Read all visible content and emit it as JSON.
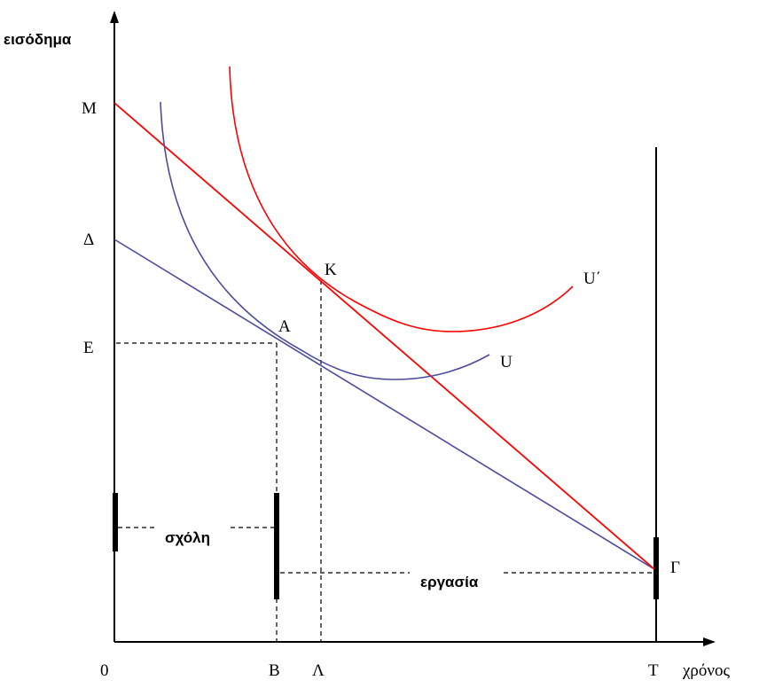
{
  "axes": {
    "y_label": "εισόδημα",
    "x_label": "χρόνος"
  },
  "y_axis_labels": {
    "M": "M",
    "delta": "Δ",
    "E": "E"
  },
  "x_axis_labels": {
    "origin": "0",
    "B": "B",
    "lambda": "Λ",
    "T": "T"
  },
  "points": {
    "K": "K",
    "A": "A",
    "gamma": "Γ"
  },
  "curves": {
    "U": "U",
    "U_prime": "U΄"
  },
  "annotations": {
    "leisure": "σχόλη",
    "work": "εργασία"
  },
  "colors": {
    "red": "#ff0000",
    "blue": "#4b4b9e",
    "axis": "#000000"
  }
}
